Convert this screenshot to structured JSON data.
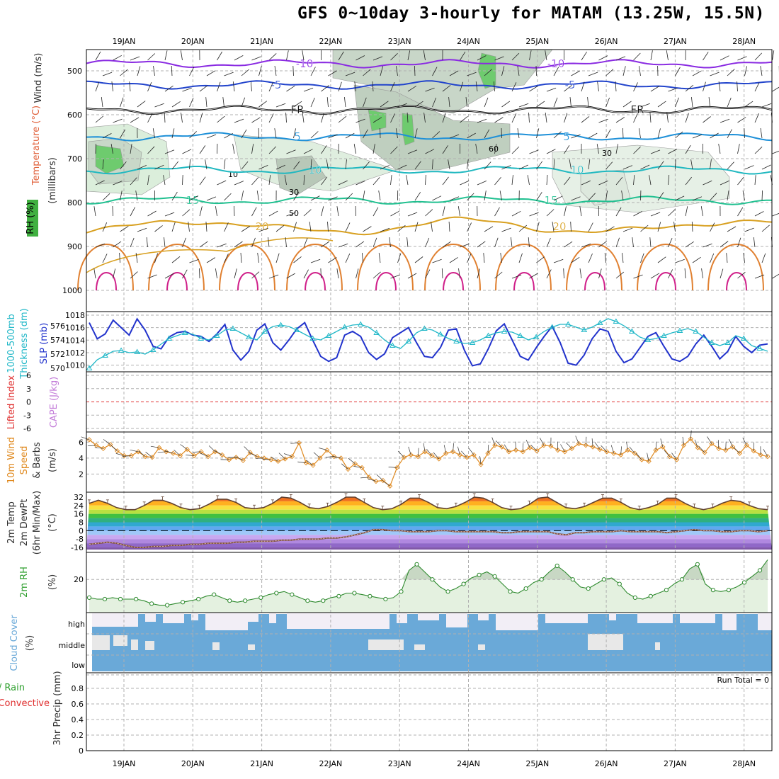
{
  "title": "GFS 0~10day 3-hourly for MATAM (13.25W, 15.5N)",
  "colors": {
    "temperature": "#e0603a",
    "wind": "#7a3fb0",
    "rh": "#2e9e2e",
    "slp": "#2233cc",
    "thickness": "#22b8c8",
    "cape": "#c27ad8",
    "lifted": "#e03030",
    "wind10": "#e08a20",
    "cloud": "#6aa9d8",
    "precip_total": "#2ea02e",
    "precip_conv": "#e03030"
  },
  "panel_labels": {
    "temperature": "Temperature (°C)",
    "wind": "Wind (m/s)",
    "rh": "RH (%)",
    "millibars": "(millibars)",
    "thickness1": "1000-500mb",
    "thickness2": "Thickness (dm)",
    "slp": "SLP (mb)",
    "lifted": "Lifted Index",
    "cape": "CAPE (J/kg)",
    "wind10_1": "10m Wind",
    "wind10_2": "Speed",
    "wind10_3": "& Barbs",
    "wind10_4": "(m/s)",
    "temp2m_1": "2m Temp",
    "temp2m_2": "2m DewPt",
    "temp2m_3": "(6hr Min/Max)",
    "temp2m_4": "(°C)",
    "rh2m_1": "2m RH",
    "rh2m_2": "(%)",
    "cloud1": "Cloud Cover",
    "cloud2": "(%)",
    "precip1": "Total / Rain",
    "precip2": "Convective",
    "precip3": "3hr Precip (mm)",
    "run_total": "Run Total = 0"
  },
  "chart_data": [
    {
      "id": "cross_section",
      "type": "contour",
      "x": [
        "19JAN",
        "20JAN",
        "21JAN",
        "22JAN",
        "23JAN",
        "24JAN",
        "25JAN",
        "26JAN",
        "27JAN",
        "28JAN"
      ],
      "yticks": [
        "500",
        "600",
        "700",
        "800",
        "900",
        "1000"
      ],
      "ylim": [
        1000,
        450
      ],
      "ylabel": "(millibars)",
      "isotherms": [
        {
          "value": "-10",
          "mb": 488,
          "color": "#8a2be2"
        },
        {
          "value": "-5",
          "mb": 532,
          "color": "#2244cc"
        },
        {
          "value": "FR",
          "mb": 588,
          "color": "#000000"
        },
        {
          "value": "5",
          "mb": 668,
          "color": "#1e90d8"
        },
        {
          "value": "10",
          "mb": 725,
          "color": "#20b8c0"
        },
        {
          "value": "15",
          "mb": 795,
          "color": "#20c090"
        },
        {
          "value": "20",
          "mb": 850,
          "color": "#d8a020"
        }
      ],
      "rh_labels": [
        "10",
        "30",
        "50",
        "60",
        "30"
      ]
    },
    {
      "id": "slp_thickness",
      "type": "line",
      "y_left_ticks": [
        "570",
        "572",
        "574",
        "576"
      ],
      "y_right_ticks": [
        "1010",
        "1012",
        "1014",
        "1016",
        "1018"
      ],
      "series": [
        {
          "name": "SLP (mb)",
          "values": [
            1016.8,
            1014.2,
            1015.0,
            1017.2,
            1016.0,
            1014.8,
            1017.4,
            1015.6,
            1013.0,
            1012.6,
            1014.5,
            1015.2,
            1015.4,
            1014.8,
            1014.6,
            1013.8,
            1015.0,
            1016.5,
            1012.4,
            1010.8,
            1012.2,
            1015.6,
            1016.6,
            1013.6,
            1012.4,
            1014.0,
            1015.8,
            1016.8,
            1014.0,
            1011.4,
            1010.6,
            1011.2,
            1014.8,
            1015.4,
            1014.6,
            1012.0,
            1010.9,
            1011.8,
            1014.4,
            1015.2,
            1016.0,
            1013.6,
            1011.4,
            1011.2,
            1012.8,
            1015.6,
            1015.8,
            1012.4,
            1009.9,
            1010.2,
            1012.6,
            1015.5,
            1016.6,
            1014.0,
            1011.4,
            1010.8,
            1012.8,
            1014.6,
            1016.2,
            1013.6,
            1010.3,
            1010.0,
            1011.6,
            1014.2,
            1015.8,
            1015.4,
            1012.2,
            1010.4,
            1011.0,
            1012.8,
            1014.6,
            1015.2,
            1013.0,
            1011.0,
            1010.6,
            1011.4,
            1013.4,
            1014.8,
            1013.0,
            1011.0,
            1012.2,
            1014.6,
            1013.0,
            1012.0,
            1013.2,
            1013.4
          ]
        },
        {
          "name": "1000-500mb Thickness (dm)",
          "values": [
            570.0,
            571.2,
            571.8,
            572.4,
            572.5,
            572.2,
            572.3,
            572.0,
            572.6,
            573.4,
            574.2,
            574.6,
            575.0,
            574.8,
            574.2,
            574.0,
            574.6,
            575.4,
            575.6,
            575.0,
            574.4,
            574.0,
            575.2,
            575.9,
            576.1,
            575.9,
            575.4,
            574.8,
            574.2,
            574.0,
            574.6,
            575.2,
            575.8,
            576.1,
            576.2,
            575.8,
            575.0,
            574.0,
            573.2,
            572.8,
            573.8,
            575.0,
            575.6,
            575.4,
            574.8,
            574.2,
            573.8,
            573.5,
            573.6,
            574.0,
            574.6,
            575.0,
            575.2,
            575.1,
            574.6,
            574.0,
            574.4,
            575.2,
            575.8,
            576.2,
            576.2,
            575.8,
            575.4,
            575.8,
            576.4,
            577.0,
            576.6,
            576.0,
            575.2,
            574.4,
            574.0,
            574.2,
            574.6,
            575.0,
            575.3,
            575.6,
            575.2,
            574.4,
            573.6,
            573.2,
            573.6,
            574.6,
            574.2,
            573.2,
            572.8,
            572.4
          ]
        }
      ]
    },
    {
      "id": "li_cape",
      "type": "line",
      "yticks": [
        "6",
        "3",
        "0",
        "-3",
        "-6"
      ],
      "ylim": [
        -6,
        6
      ]
    },
    {
      "id": "wind10",
      "type": "line",
      "yticks": [
        "2",
        "4",
        "6"
      ],
      "ylim": [
        0,
        7
      ],
      "series": [
        {
          "name": "10m Wind Speed",
          "values": [
            6.3,
            5.6,
            5.2,
            5.7,
            4.9,
            4.3,
            4.3,
            4.8,
            4.2,
            4.1,
            5.3,
            4.8,
            4.6,
            4.3,
            5.1,
            4.3,
            4.8,
            4.2,
            4.8,
            4.4,
            3.8,
            4.1,
            3.7,
            4.7,
            4.2,
            4.0,
            3.8,
            3.6,
            3.9,
            4.2,
            5.9,
            3.4,
            3.1,
            4.0,
            5.0,
            4.2,
            4.0,
            2.6,
            3.3,
            2.8,
            1.6,
            1.1,
            1.2,
            0.5,
            2.8,
            4.1,
            4.4,
            4.2,
            4.8,
            4.3,
            3.9,
            4.6,
            4.8,
            4.4,
            4.1,
            4.4,
            3.2,
            4.6,
            5.6,
            5.4,
            4.8,
            5.0,
            4.8,
            5.3,
            4.9,
            5.6,
            5.5,
            5.0,
            4.8,
            5.2,
            5.8,
            5.6,
            5.4,
            5.1,
            4.8,
            4.6,
            4.4,
            5.0,
            4.6,
            3.8,
            3.6,
            5.0,
            5.4,
            4.2,
            3.8,
            5.6,
            6.4,
            5.3,
            4.7,
            5.8,
            5.2,
            5.0,
            5.4,
            4.6,
            5.6,
            4.9,
            4.4,
            4.2
          ]
        }
      ]
    },
    {
      "id": "temp2m",
      "type": "area",
      "yticks": [
        "32",
        "24",
        "16",
        "8",
        "0",
        "-8",
        "-16"
      ],
      "ylim": [
        -18,
        34
      ],
      "series": [
        {
          "name": "2m Temp",
          "values": [
            26,
            29,
            26,
            22,
            20,
            20,
            24,
            29,
            29,
            26,
            22,
            20,
            21,
            25,
            30,
            30,
            27,
            22,
            21,
            22,
            26,
            32,
            31,
            27,
            22,
            21,
            23,
            27,
            32,
            32,
            27,
            22,
            20,
            21,
            25,
            31,
            31,
            27,
            22,
            21,
            23,
            27,
            32,
            31,
            27,
            22,
            20,
            21,
            25,
            31,
            32,
            27,
            22,
            21,
            23,
            27,
            31,
            31,
            27,
            22,
            20,
            22,
            25,
            31,
            31,
            26,
            22,
            20,
            22,
            26,
            29,
            28,
            24,
            21,
            20
          ]
        },
        {
          "name": "2m DewPt",
          "values": [
            -13,
            -12,
            -11,
            -12,
            -14,
            -16,
            -16,
            -15,
            -15,
            -14,
            -14,
            -13,
            -13,
            -12,
            -12,
            -12,
            -11,
            -11,
            -10,
            -10,
            -10,
            -9,
            -9,
            -8,
            -8,
            -8,
            -7,
            -7,
            -6,
            -4,
            -2,
            1,
            1,
            0,
            0,
            -1,
            -1,
            -1,
            0,
            0,
            -1,
            -1,
            -1,
            -1,
            -1,
            -2,
            -2,
            -1,
            -1,
            -1,
            -1,
            -3,
            -4,
            -2,
            -2,
            -1,
            -1,
            -1,
            0,
            -1,
            -1,
            -1,
            -1,
            -2,
            -1,
            0,
            1,
            0,
            0,
            -1,
            -1,
            0,
            0,
            -1,
            0
          ]
        }
      ]
    },
    {
      "id": "rh2m",
      "type": "area",
      "yticks": [
        "20"
      ],
      "ylim": [
        0,
        36
      ],
      "series": [
        {
          "name": "2m RH",
          "values": [
            8,
            7,
            7,
            8,
            7,
            7,
            7,
            6,
            4,
            3,
            3,
            4,
            5,
            6,
            7,
            9,
            10,
            8,
            6,
            5,
            6,
            7,
            8,
            10,
            11,
            12,
            10,
            8,
            6,
            5,
            6,
            8,
            9,
            11,
            11,
            10,
            9,
            8,
            7,
            8,
            12,
            26,
            30,
            25,
            20,
            15,
            12,
            14,
            17,
            21,
            23,
            25,
            22,
            17,
            12,
            11,
            14,
            18,
            20,
            25,
            29,
            25,
            20,
            15,
            14,
            17,
            20,
            21,
            17,
            11,
            8,
            7,
            9,
            11,
            13,
            17,
            20,
            27,
            30,
            17,
            13,
            12,
            13,
            15,
            18,
            22,
            26,
            33
          ]
        }
      ]
    },
    {
      "id": "cloud_cover",
      "type": "heatmap",
      "rows": [
        "high",
        "middle",
        "low"
      ],
      "ylabel": "(%)"
    },
    {
      "id": "precip",
      "type": "bar",
      "yticks": [
        "0",
        "0.2",
        "0.4",
        "0.6",
        "0.8"
      ],
      "ylim": [
        0,
        1
      ],
      "values": [],
      "annotation": "Run Total = 0"
    }
  ]
}
